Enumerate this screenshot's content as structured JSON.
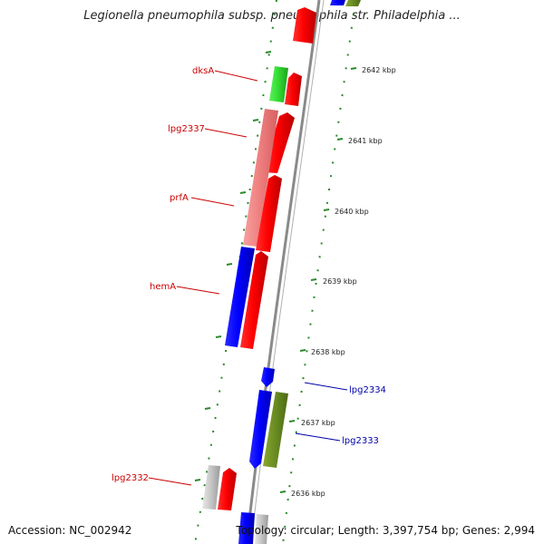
{
  "title": "Legionella pneumophila subsp. pneumophila str. Philadelphia ...",
  "footer": {
    "accession": "Accession: NC_002942",
    "summary": "Topology: circular; Length: 3,397,754 bp; Genes: 2,994"
  },
  "colors": {
    "backbone": "#8a8a8a",
    "tick": "#2a8a2a",
    "forward_label": "#cc0000",
    "reverse_label": "#0000aa"
  },
  "scale_ticks": [
    "2642 kbp",
    "2641 kbp",
    "2640 kbp",
    "2639 kbp",
    "2638 kbp",
    "2637 kbp",
    "2636 kbp"
  ],
  "gene_labels": [
    {
      "text": "dksA",
      "strand": "forward"
    },
    {
      "text": "lpg2337",
      "strand": "forward"
    },
    {
      "text": "prfA",
      "strand": "forward"
    },
    {
      "text": "hemA",
      "strand": "forward"
    },
    {
      "text": "lpg2334",
      "strand": "reverse"
    },
    {
      "text": "lpg2333",
      "strand": "reverse"
    },
    {
      "text": "lpg2332",
      "strand": "forward"
    }
  ]
}
